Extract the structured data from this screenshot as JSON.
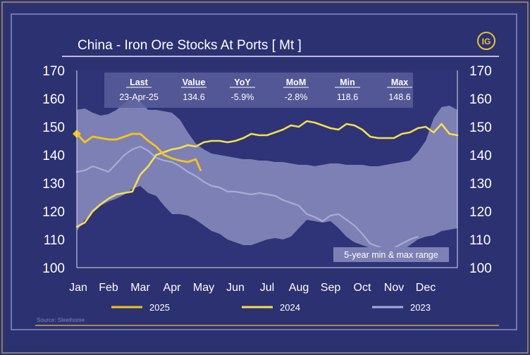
{
  "source": "Source: Steelhome",
  "logo_text": "IG",
  "colors": {
    "background": "#2c3172",
    "plot_bg": "#2e3477",
    "range_band": "#7d80b4",
    "table_bg": "#5b5f9c",
    "series_2025": "#f5c518",
    "series_2024": "#f4e04d",
    "series_2023": "#a9abd6",
    "accent_border": "#e8c23a"
  },
  "stats": {
    "headers": [
      "Last",
      "Value",
      "YoY",
      "MoM",
      "Min",
      "Max"
    ],
    "values": [
      "23-Apr-25",
      "134.6",
      "-5.9%",
      "-2.8%",
      "118.6",
      "148.6"
    ]
  },
  "chart_data": {
    "type": "line",
    "title": "China - Iron Ore Stocks At Ports [ Mt ]",
    "x_ticks": [
      "Jan",
      "Feb",
      "Mar",
      "Apr",
      "May",
      "Jun",
      "Jul",
      "Aug",
      "Sep",
      "Oct",
      "Nov",
      "Dec"
    ],
    "y_ticks": [
      "170",
      "160",
      "150",
      "140",
      "130",
      "120",
      "110",
      "100"
    ],
    "ylim": [
      100,
      170
    ],
    "xlim": [
      0,
      12
    ],
    "grid": false,
    "legend_position": "bottom",
    "range_label": "5-year min & max range",
    "range_band": {
      "x": [
        0,
        0.25,
        0.5,
        0.75,
        1,
        1.25,
        1.5,
        1.75,
        2,
        2.25,
        2.5,
        2.75,
        3,
        3.25,
        3.5,
        3.75,
        4,
        4.25,
        4.5,
        4.75,
        5,
        5.25,
        5.5,
        5.75,
        6,
        6.25,
        6.5,
        6.75,
        7,
        7.25,
        7.5,
        7.75,
        8,
        8.25,
        8.5,
        8.75,
        9,
        9.25,
        9.5,
        9.75,
        10,
        10.25,
        10.5,
        10.75,
        11,
        11.25,
        11.5,
        11.75,
        12
      ],
      "upper": [
        156,
        156.5,
        155,
        154,
        154.5,
        156,
        158.5,
        160,
        159,
        156,
        156,
        155.5,
        155,
        152.5,
        148,
        144,
        142,
        140.5,
        140,
        139.5,
        139,
        138.5,
        138.5,
        138,
        138,
        137.5,
        137.5,
        137,
        136.5,
        136.5,
        136,
        136.5,
        137,
        137,
        136.5,
        136.5,
        136.5,
        136,
        136,
        136.5,
        137,
        137.5,
        138,
        141,
        145,
        153,
        157,
        157.5,
        156
      ],
      "lower": [
        113,
        117,
        119.5,
        122,
        123.5,
        124.5,
        126,
        128,
        129,
        126.5,
        125.5,
        122,
        119,
        119,
        118.5,
        117,
        115,
        113,
        112,
        110,
        109,
        108,
        108,
        109,
        110,
        110.5,
        110,
        111,
        114,
        117,
        116.5,
        116,
        116.5,
        114,
        111,
        109,
        108,
        107,
        105.5,
        104,
        104,
        106,
        108,
        110,
        111,
        111.5,
        113,
        113.5,
        114
      ]
    },
    "series": [
      {
        "name": "2025",
        "x": [
          0,
          0.25,
          0.5,
          0.75,
          1,
          1.25,
          1.5,
          1.75,
          2,
          2.25,
          2.5,
          2.75,
          3,
          3.25,
          3.5,
          3.75,
          3.9
        ],
        "y": [
          147.5,
          144.5,
          146.5,
          146,
          145.5,
          145.5,
          146.5,
          147.5,
          147.5,
          145,
          143,
          140,
          138.8,
          138,
          137.5,
          138.5,
          134.6
        ]
      },
      {
        "name": "2024",
        "x": [
          0,
          0.25,
          0.5,
          0.75,
          1,
          1.25,
          1.5,
          1.75,
          2,
          2.25,
          2.5,
          2.75,
          3,
          3.25,
          3.5,
          3.75,
          4,
          4.25,
          4.5,
          4.75,
          5,
          5.25,
          5.5,
          5.75,
          6,
          6.25,
          6.5,
          6.75,
          7,
          7.25,
          7.5,
          7.75,
          8,
          8.25,
          8.5,
          8.75,
          9,
          9.25,
          9.5,
          9.75,
          10,
          10.25,
          10.5,
          10.75,
          11,
          11.25,
          11.5,
          11.75,
          12
        ],
        "y": [
          114.5,
          116,
          120,
          122.5,
          124.5,
          126,
          126.5,
          127,
          133,
          136,
          140,
          141,
          142,
          142.5,
          143.5,
          143,
          144.5,
          145,
          145,
          144.5,
          145,
          146,
          147.5,
          147,
          147,
          148,
          149,
          150.5,
          150,
          152,
          151.5,
          150.5,
          149.5,
          149,
          151,
          150.5,
          149,
          146.5,
          146,
          146,
          146,
          147.5,
          148,
          149.5,
          150,
          148,
          151,
          147.5,
          147
        ]
      },
      {
        "name": "2023",
        "x": [
          0,
          0.25,
          0.5,
          0.75,
          1,
          1.25,
          1.5,
          1.75,
          2,
          2.25,
          2.5,
          2.75,
          3,
          3.25,
          3.5,
          3.75,
          4,
          4.25,
          4.5,
          4.75,
          5,
          5.25,
          5.5,
          5.75,
          6,
          6.25,
          6.5,
          6.75,
          7,
          7.25,
          7.5,
          7.75,
          8,
          8.25,
          8.5,
          8.75,
          9,
          9.25,
          9.5,
          9.75,
          10,
          10.25,
          10.5,
          10.75
        ],
        "y": [
          134,
          134.5,
          136,
          135,
          134,
          137,
          140,
          142,
          143,
          141.5,
          139,
          138,
          137.5,
          136,
          134,
          132.5,
          130.5,
          129,
          128.5,
          127,
          127,
          126.5,
          126,
          126.5,
          126,
          125.5,
          124,
          123,
          122,
          119,
          118,
          116.5,
          118.5,
          119,
          117,
          115,
          112,
          108.5,
          107.5,
          106.5,
          107,
          108.5,
          110,
          111
        ]
      }
    ]
  }
}
